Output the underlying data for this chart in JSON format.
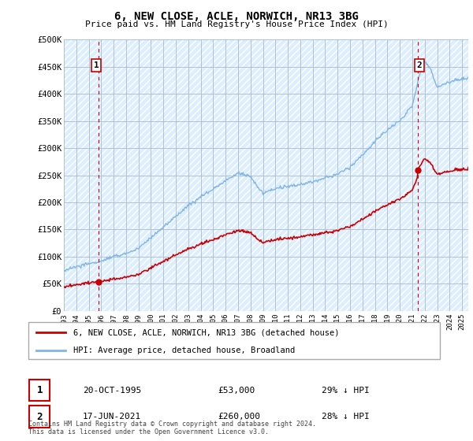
{
  "title": "6, NEW CLOSE, ACLE, NORWICH, NR13 3BG",
  "subtitle": "Price paid vs. HM Land Registry's House Price Index (HPI)",
  "ylabel_ticks": [
    "£0",
    "£50K",
    "£100K",
    "£150K",
    "£200K",
    "£250K",
    "£300K",
    "£350K",
    "£400K",
    "£450K",
    "£500K"
  ],
  "ytick_values": [
    0,
    50000,
    100000,
    150000,
    200000,
    250000,
    300000,
    350000,
    400000,
    450000,
    500000
  ],
  "ylim": [
    0,
    500000
  ],
  "xlim_start": 1993.0,
  "xlim_end": 2025.5,
  "hpi_color": "#7eb6e8",
  "property_color": "#cc0000",
  "dashed_color": "#cc0000",
  "bg_color": "#ddeeff",
  "grid_color": "#aabbcc",
  "sale1_x": 1995.8,
  "sale1_y": 53000,
  "sale1_label": "1",
  "sale2_x": 2021.46,
  "sale2_y": 260000,
  "sale2_label": "2",
  "legend_line1": "6, NEW CLOSE, ACLE, NORWICH, NR13 3BG (detached house)",
  "legend_line2": "HPI: Average price, detached house, Broadland",
  "footer": "Contains HM Land Registry data © Crown copyright and database right 2024.\nThis data is licensed under the Open Government Licence v3.0.",
  "xtick_years": [
    1993,
    1994,
    1995,
    1996,
    1997,
    1998,
    1999,
    2000,
    2001,
    2002,
    2003,
    2004,
    2005,
    2006,
    2007,
    2008,
    2009,
    2010,
    2011,
    2012,
    2013,
    2014,
    2015,
    2016,
    2017,
    2018,
    2019,
    2020,
    2021,
    2022,
    2023,
    2024,
    2025
  ]
}
